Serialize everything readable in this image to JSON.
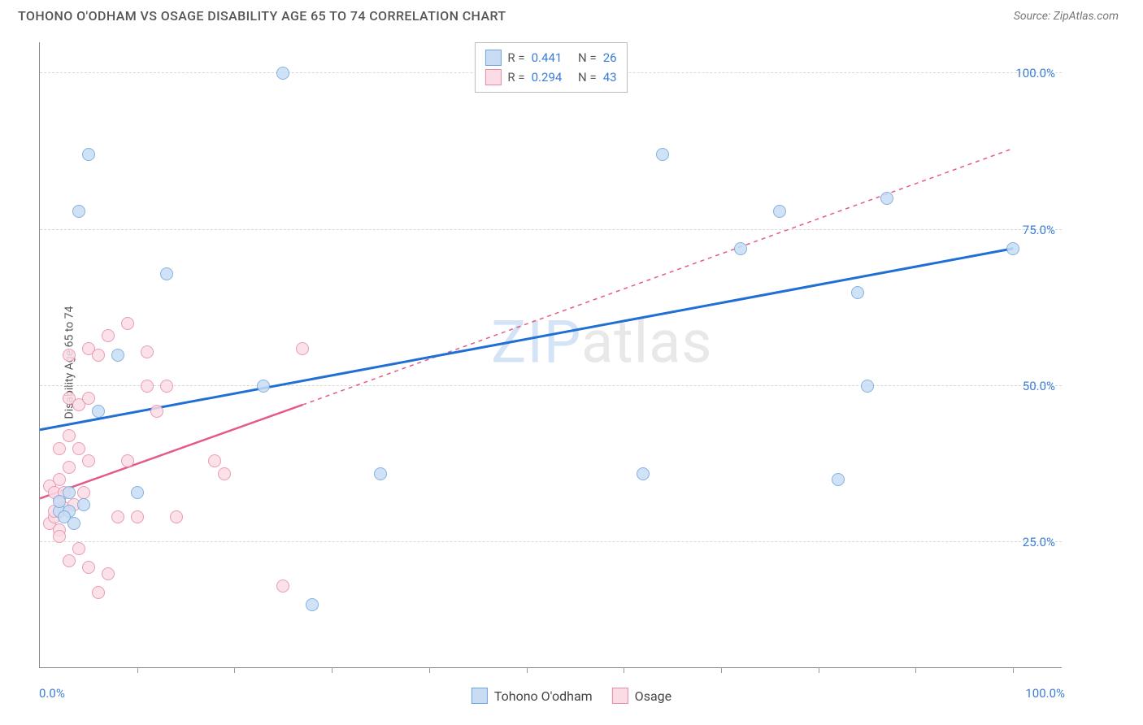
{
  "header": {
    "title": "TOHONO O'ODHAM VS OSAGE DISABILITY AGE 65 TO 74 CORRELATION CHART",
    "source": "Source: ZipAtlas.com"
  },
  "chart": {
    "type": "scatter",
    "ylabel": "Disability Age 65 to 74",
    "xlim": [
      0,
      105
    ],
    "ylim": [
      5,
      105
    ],
    "xtick_labels": {
      "0": "0.0%",
      "100": "100.0%"
    },
    "ytick_labels": {
      "25": "25.0%",
      "50": "50.0%",
      "75": "75.0%",
      "100": "100.0%"
    },
    "xtick_positions": [
      0,
      10,
      20,
      30,
      40,
      50,
      60,
      70,
      80,
      90,
      100
    ],
    "gridlines_y": [
      25,
      50,
      75,
      100
    ],
    "background_color": "#ffffff",
    "grid_color": "#d8d8d8",
    "axis_color": "#888888",
    "tick_label_color": "#3b7dd8",
    "marker_radius": 8,
    "marker_stroke_width": 1.5,
    "series": {
      "tohono": {
        "label": "Tohono O'odham",
        "fill_color": "#c8ddf4",
        "stroke_color": "#6fa5de",
        "line_color": "#1f6fd4",
        "line_width": 3,
        "R": "0.441",
        "N": "26",
        "trend_solid": {
          "x1": 0,
          "y1": 43,
          "x2": 100,
          "y2": 72
        },
        "points": [
          {
            "x": 2,
            "y": 30
          },
          {
            "x": 2,
            "y": 31.5
          },
          {
            "x": 3,
            "y": 33
          },
          {
            "x": 4,
            "y": 78
          },
          {
            "x": 5,
            "y": 87
          },
          {
            "x": 6,
            "y": 46
          },
          {
            "x": 8,
            "y": 55
          },
          {
            "x": 10,
            "y": 33
          },
          {
            "x": 13,
            "y": 68
          },
          {
            "x": 23,
            "y": 50
          },
          {
            "x": 25,
            "y": 100
          },
          {
            "x": 28,
            "y": 15
          },
          {
            "x": 35,
            "y": 36
          },
          {
            "x": 62,
            "y": 36
          },
          {
            "x": 64,
            "y": 87
          },
          {
            "x": 72,
            "y": 72
          },
          {
            "x": 76,
            "y": 78
          },
          {
            "x": 82,
            "y": 35
          },
          {
            "x": 84,
            "y": 65
          },
          {
            "x": 85,
            "y": 50
          },
          {
            "x": 87,
            "y": 80
          },
          {
            "x": 100,
            "y": 72
          },
          {
            "x": 3,
            "y": 30
          },
          {
            "x": 2.5,
            "y": 29
          },
          {
            "x": 4.5,
            "y": 31
          },
          {
            "x": 3.5,
            "y": 28
          }
        ]
      },
      "osage": {
        "label": "Osage",
        "fill_color": "#fbdce5",
        "stroke_color": "#e68ba8",
        "line_color": "#e45a88",
        "line_width": 2.5,
        "R": "0.294",
        "N": "43",
        "trend_solid": {
          "x1": 0,
          "y1": 32,
          "x2": 27,
          "y2": 47
        },
        "trend_dashed": {
          "x1": 27,
          "y1": 47,
          "x2": 100,
          "y2": 88
        },
        "points": [
          {
            "x": 1,
            "y": 28
          },
          {
            "x": 1.5,
            "y": 29
          },
          {
            "x": 2,
            "y": 27
          },
          {
            "x": 1.5,
            "y": 30
          },
          {
            "x": 2,
            "y": 32
          },
          {
            "x": 2.5,
            "y": 30.5
          },
          {
            "x": 2,
            "y": 35
          },
          {
            "x": 3,
            "y": 37
          },
          {
            "x": 2,
            "y": 40
          },
          {
            "x": 3,
            "y": 42
          },
          {
            "x": 4,
            "y": 40
          },
          {
            "x": 3,
            "y": 48
          },
          {
            "x": 4,
            "y": 47
          },
          {
            "x": 5,
            "y": 48
          },
          {
            "x": 5,
            "y": 38
          },
          {
            "x": 3,
            "y": 55
          },
          {
            "x": 5,
            "y": 56
          },
          {
            "x": 6,
            "y": 55
          },
          {
            "x": 7,
            "y": 58
          },
          {
            "x": 9,
            "y": 60
          },
          {
            "x": 9,
            "y": 38
          },
          {
            "x": 11,
            "y": 50
          },
          {
            "x": 11,
            "y": 55.5
          },
          {
            "x": 12,
            "y": 46
          },
          {
            "x": 13,
            "y": 50
          },
          {
            "x": 18,
            "y": 38
          },
          {
            "x": 19,
            "y": 36
          },
          {
            "x": 27,
            "y": 56
          },
          {
            "x": 3,
            "y": 22
          },
          {
            "x": 4,
            "y": 24
          },
          {
            "x": 5,
            "y": 21
          },
          {
            "x": 6,
            "y": 17
          },
          {
            "x": 7,
            "y": 20
          },
          {
            "x": 8,
            "y": 29
          },
          {
            "x": 10,
            "y": 29
          },
          {
            "x": 14,
            "y": 29
          },
          {
            "x": 25,
            "y": 18
          },
          {
            "x": 2,
            "y": 26
          },
          {
            "x": 1,
            "y": 34
          },
          {
            "x": 1.5,
            "y": 33
          },
          {
            "x": 2.5,
            "y": 33
          },
          {
            "x": 3.5,
            "y": 31
          },
          {
            "x": 4.5,
            "y": 33
          }
        ]
      }
    }
  },
  "watermark": {
    "prefix": "ZIP",
    "suffix": "atlas"
  },
  "legend_top": {
    "r_label": "R =",
    "n_label": "N ="
  }
}
